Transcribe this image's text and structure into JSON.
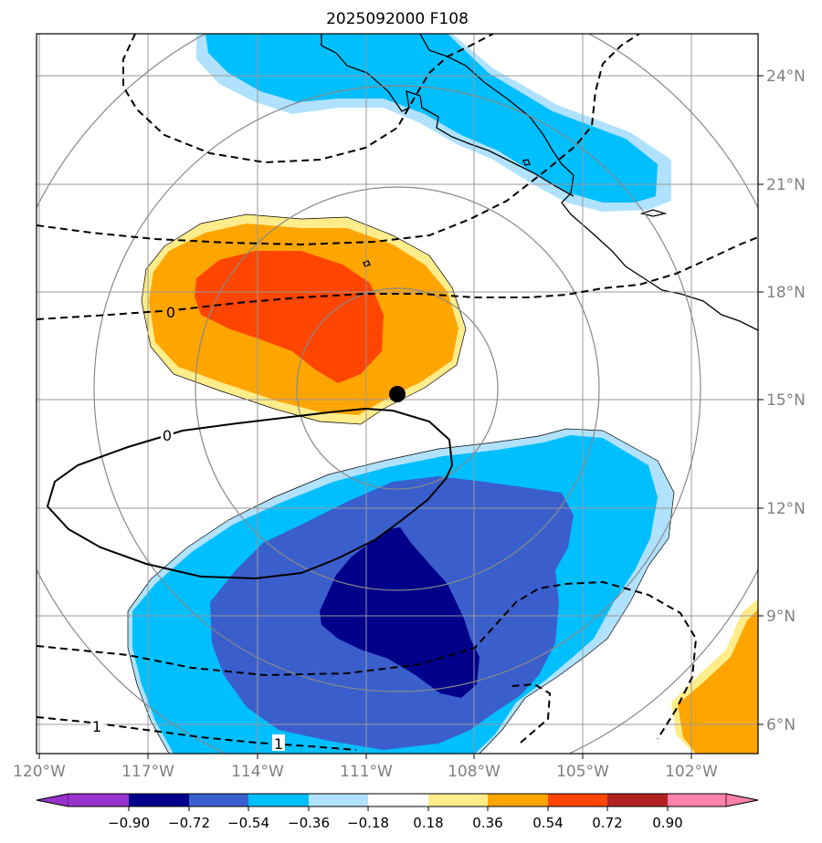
{
  "chart_data": {
    "type": "heatmap",
    "title": "2025092000 F108",
    "projection": "lat-lon map",
    "xlim": [
      -120,
      -100
    ],
    "ylim": [
      5.3,
      25
    ],
    "x_ticks": [
      -120,
      -117,
      -114,
      -111,
      -108,
      -105,
      -102
    ],
    "x_tick_labels": [
      "120°W",
      "117°W",
      "114°W",
      "111°W",
      "108°W",
      "105°W",
      "102°W"
    ],
    "y_ticks": [
      6,
      9,
      12,
      15,
      18,
      21,
      24
    ],
    "y_tick_labels": [
      "6°N",
      "9°N",
      "12°N",
      "15°N",
      "18°N",
      "21°N",
      "24°N"
    ],
    "grid": true,
    "colorbar": {
      "levels": [
        -0.9,
        -0.72,
        -0.54,
        -0.36,
        -0.18,
        0.18,
        0.36,
        0.54,
        0.72,
        0.9
      ],
      "tick_labels": [
        "−0.90",
        "−0.72",
        "−0.54",
        "−0.36",
        "−0.18",
        "0.18",
        "0.36",
        "0.54",
        "0.72",
        "0.90"
      ],
      "colors": [
        "#9932cc",
        "#00008b",
        "#3a5fcd",
        "#00bfff",
        "#b0e2ff",
        "#ffffff",
        "#ffec8b",
        "#ffa500",
        "#ff4500",
        "#b22222",
        "#ff82ab"
      ],
      "extend": "both"
    },
    "center_marker": {
      "lon": -109.9,
      "lat": 15.2
    },
    "range_rings_deg": [
      3,
      6,
      9,
      12
    ],
    "contour_labels": [
      {
        "text": "0",
        "lon": -114.6,
        "lat": 17.4
      },
      {
        "text": "0",
        "lon": -114.7,
        "lat": 14.0
      },
      {
        "text": "1",
        "lon": -119.4,
        "lat": 6.0
      },
      {
        "text": "1",
        "lon": -112.9,
        "lat": 5.6
      }
    ]
  }
}
